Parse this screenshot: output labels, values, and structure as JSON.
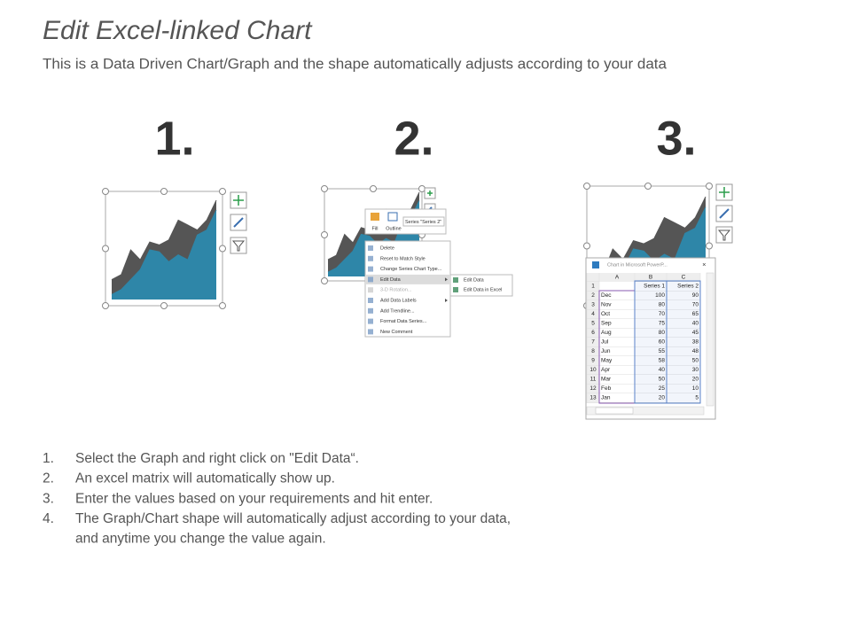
{
  "header": {
    "title": "Edit Excel-linked Chart",
    "subtitle": "This is a Data Driven Chart/Graph and the shape automatically adjusts according to your data"
  },
  "steps": [
    "1.",
    "2.",
    "3."
  ],
  "toolbar": {
    "fill": "Fill",
    "outline": "Outline",
    "series": "Series \"Series 2\""
  },
  "context_menu": [
    "Delete",
    "Reset to Match Style",
    "Change Series Chart Type...",
    "Edit Data",
    "3-D Rotation...",
    "Add Data Labels",
    "Add Trendline...",
    "Format Data Series...",
    "New Comment"
  ],
  "submenu": [
    "Edit Data",
    "Edit Data in Excel"
  ],
  "excel": {
    "title": "Chart in Microsoft PowerP...",
    "columns": [
      "A",
      "B",
      "C"
    ],
    "row_numbers": [
      1,
      2,
      3,
      4,
      5,
      6,
      7,
      8,
      9,
      10,
      11,
      12,
      13
    ],
    "header_row": [
      "Series 1",
      "Series 2"
    ],
    "rows": [
      [
        "Dec",
        100,
        90
      ],
      [
        "Nov",
        80,
        70
      ],
      [
        "Oct",
        70,
        65
      ],
      [
        "Sep",
        75,
        40
      ],
      [
        "Aug",
        80,
        45
      ],
      [
        "Jul",
        60,
        38
      ],
      [
        "Jun",
        55,
        48
      ],
      [
        "May",
        58,
        50
      ],
      [
        "Apr",
        40,
        30
      ],
      [
        "Mar",
        50,
        20
      ],
      [
        "Feb",
        25,
        10
      ],
      [
        "Jan",
        20,
        5
      ]
    ]
  },
  "instructions": [
    {
      "number": "1.",
      "lines": [
        "Select the Graph and right click on \"Edit Data“."
      ]
    },
    {
      "number": "2.",
      "lines": [
        "An excel matrix will automatically show up."
      ]
    },
    {
      "number": "3.",
      "lines": [
        "Enter the values based on your requirements and hit enter."
      ]
    },
    {
      "number": "4.",
      "lines": [
        "The Graph/Chart shape will automatically adjust according to your data,",
        "and anytime you change the value again."
      ]
    }
  ]
}
